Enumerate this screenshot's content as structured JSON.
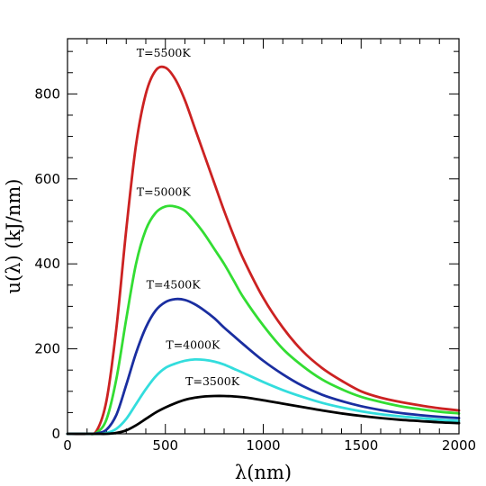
{
  "chart_data": {
    "type": "line",
    "title": "",
    "xlabel": "λ(nm)",
    "ylabel": "u(λ)  (kJ/nm)",
    "xlim": [
      0,
      2000
    ],
    "ylim": [
      0,
      930
    ],
    "x_major_ticks": [
      0,
      500,
      1000,
      1500,
      2000
    ],
    "x_minor_step": 100,
    "y_major_ticks": [
      0,
      200,
      400,
      600,
      800
    ],
    "y_minor_step": 50,
    "grid": false,
    "x": [
      0,
      100,
      150,
      200,
      250,
      300,
      350,
      400,
      450,
      500,
      550,
      600,
      650,
      700,
      750,
      800,
      850,
      900,
      1000,
      1100,
      1200,
      1300,
      1400,
      1500,
      1600,
      1700,
      1800,
      1900,
      2000
    ],
    "series": [
      {
        "label": "T=5500K",
        "temperature_K": 5500,
        "color": "#cc2222",
        "values": [
          0,
          0,
          8,
          80,
          250,
          480,
          680,
          800,
          855,
          862,
          835,
          785,
          720,
          655,
          590,
          525,
          465,
          410,
          320,
          250,
          195,
          155,
          125,
          100,
          85,
          75,
          67,
          60,
          55
        ]
      },
      {
        "label": "T=5000K",
        "temperature_K": 5000,
        "color": "#33dd33",
        "values": [
          0,
          0,
          3,
          35,
          130,
          270,
          400,
          480,
          520,
          535,
          535,
          525,
          500,
          470,
          435,
          400,
          360,
          320,
          255,
          200,
          160,
          128,
          105,
          87,
          75,
          65,
          58,
          52,
          48
        ]
      },
      {
        "label": "T=4500K",
        "temperature_K": 4500,
        "color": "#1a2ea0",
        "values": [
          0,
          0,
          1,
          10,
          45,
          115,
          190,
          250,
          290,
          310,
          317,
          315,
          305,
          290,
          272,
          250,
          230,
          210,
          172,
          140,
          113,
          92,
          77,
          65,
          56,
          49,
          44,
          40,
          37
        ]
      },
      {
        "label": "T=4000K",
        "temperature_K": 4000,
        "color": "#33dddd",
        "values": [
          0,
          0,
          0,
          2,
          12,
          35,
          70,
          105,
          135,
          155,
          165,
          172,
          175,
          174,
          170,
          163,
          153,
          143,
          122,
          103,
          87,
          73,
          62,
          53,
          46,
          41,
          37,
          33,
          30
        ]
      },
      {
        "label": "T=3500K",
        "temperature_K": 3500,
        "color": "#000000",
        "values": [
          0,
          0,
          0,
          0,
          2,
          8,
          20,
          35,
          50,
          62,
          72,
          80,
          85,
          88,
          89,
          89,
          88,
          86,
          79,
          71,
          63,
          55,
          48,
          42,
          37,
          33,
          30,
          27,
          25
        ]
      }
    ]
  }
}
